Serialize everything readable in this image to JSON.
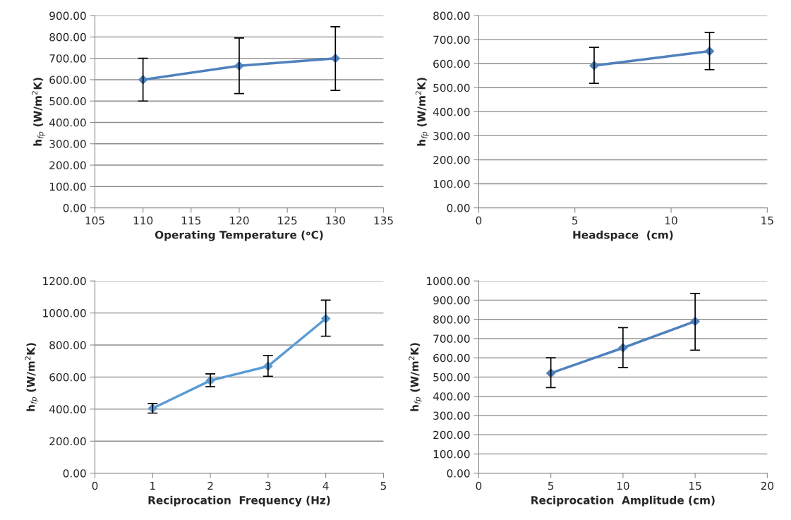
{
  "chart_data": [
    {
      "type": "line",
      "xlabel": "Operating Temperature (ᵒC)",
      "ylabel": "h$_{fp}$ (W/m$^{2}$K)",
      "x": [
        110,
        120,
        130
      ],
      "series": [
        {
          "color": "#4f81bd",
          "values": [
            600,
            665,
            700
          ],
          "errors": [
            [
              500,
              700
            ],
            [
              535,
              795
            ],
            [
              550,
              848
            ]
          ]
        }
      ],
      "xlim": [
        105,
        135
      ],
      "xticks": [
        105,
        110,
        115,
        120,
        125,
        130,
        135
      ],
      "ylim": [
        0,
        900
      ],
      "yticks": [
        {
          "value": 0,
          "label": "0.00"
        },
        {
          "value": 100,
          "label": "100.00"
        },
        {
          "value": 200,
          "label": "200.00"
        },
        {
          "value": 300,
          "label": "300.00"
        },
        {
          "value": 400,
          "label": "400.00"
        },
        {
          "value": 500,
          "label": "500.00"
        },
        {
          "value": 600,
          "label": "600.00"
        },
        {
          "value": 700,
          "label": "700.00"
        },
        {
          "value": 800,
          "label": "800.00"
        },
        {
          "value": 900,
          "label": "900.00"
        }
      ],
      "grid": "y",
      "marker": "diamond",
      "line_style": "solid"
    },
    {
      "type": "line",
      "xlabel": "Headspace  (cm)",
      "ylabel": "h$_{fp}$ (W/m$^{2}$K)",
      "x": [
        6,
        12
      ],
      "series": [
        {
          "color": "#4f81bd",
          "values": [
            592,
            652
          ],
          "errors": [
            [
              518,
              668
            ],
            [
              575,
              730
            ]
          ]
        }
      ],
      "xlim": [
        0,
        15
      ],
      "xticks": [
        0,
        5,
        10,
        15
      ],
      "ylim": [
        0,
        800
      ],
      "yticks": [
        {
          "value": 0,
          "label": "0.00"
        },
        {
          "value": 100,
          "label": "100.00"
        },
        {
          "value": 200,
          "label": "200.00"
        },
        {
          "value": 300,
          "label": "300.00"
        },
        {
          "value": 400,
          "label": "400.00"
        },
        {
          "value": 500,
          "label": "500.00"
        },
        {
          "value": 600,
          "label": "600.00"
        },
        {
          "value": 700,
          "label": "700.00"
        },
        {
          "value": 800,
          "label": "800.00"
        }
      ],
      "grid": "y",
      "marker": "diamond",
      "line_style": "solid"
    },
    {
      "type": "line",
      "xlabel": "Reciprocation  Frequency (Hz)",
      "ylabel": "h$_{fp}$ (W/m$^{2}$K)",
      "x": [
        1,
        2,
        3,
        4
      ],
      "series": [
        {
          "color": "#5b9bd5",
          "values": [
            405,
            578,
            668,
            965
          ],
          "errors": [
            [
              375,
              435
            ],
            [
              540,
              620
            ],
            [
              605,
              735
            ],
            [
              855,
              1080
            ]
          ]
        }
      ],
      "xlim": [
        0,
        5
      ],
      "xticks": [
        0,
        1,
        2,
        3,
        4,
        5
      ],
      "ylim": [
        0,
        1200
      ],
      "yticks": [
        {
          "value": 0,
          "label": "0.00"
        },
        {
          "value": 200,
          "label": "200.00"
        },
        {
          "value": 400,
          "label": "400.00"
        },
        {
          "value": 600,
          "label": "600.00"
        },
        {
          "value": 800,
          "label": "800.00"
        },
        {
          "value": 1000,
          "label": "1000.00"
        },
        {
          "value": 1200,
          "label": "1200.00"
        }
      ],
      "grid": "y",
      "marker": "diamond",
      "line_style": "solid"
    },
    {
      "type": "line",
      "xlabel": "Reciprocation  Amplitude (cm)",
      "ylabel": "h$_{fp}$ (W/m$^{2}$K)",
      "x": [
        5,
        10,
        15
      ],
      "series": [
        {
          "color": "#4f81bd",
          "values": [
            520,
            652,
            790
          ],
          "errors": [
            [
              445,
              600
            ],
            [
              550,
              757
            ],
            [
              640,
              935
            ]
          ]
        }
      ],
      "xlim": [
        0,
        20
      ],
      "xticks": [
        0,
        5,
        10,
        15,
        20
      ],
      "ylim": [
        0,
        1000
      ],
      "yticks": [
        {
          "value": 0,
          "label": "0.00"
        },
        {
          "value": 100,
          "label": "100.00"
        },
        {
          "value": 200,
          "label": "200.00"
        },
        {
          "value": 300,
          "label": "300.00"
        },
        {
          "value": 400,
          "label": "400.00"
        },
        {
          "value": 500,
          "label": "500.00"
        },
        {
          "value": 600,
          "label": "600.00"
        },
        {
          "value": 700,
          "label": "700.00"
        },
        {
          "value": 800,
          "label": "800.00"
        },
        {
          "value": 900,
          "label": "900.00"
        },
        {
          "value": 1000,
          "label": "1000.00"
        }
      ],
      "grid": "y",
      "marker": "diamond",
      "line_style": "solid"
    }
  ]
}
